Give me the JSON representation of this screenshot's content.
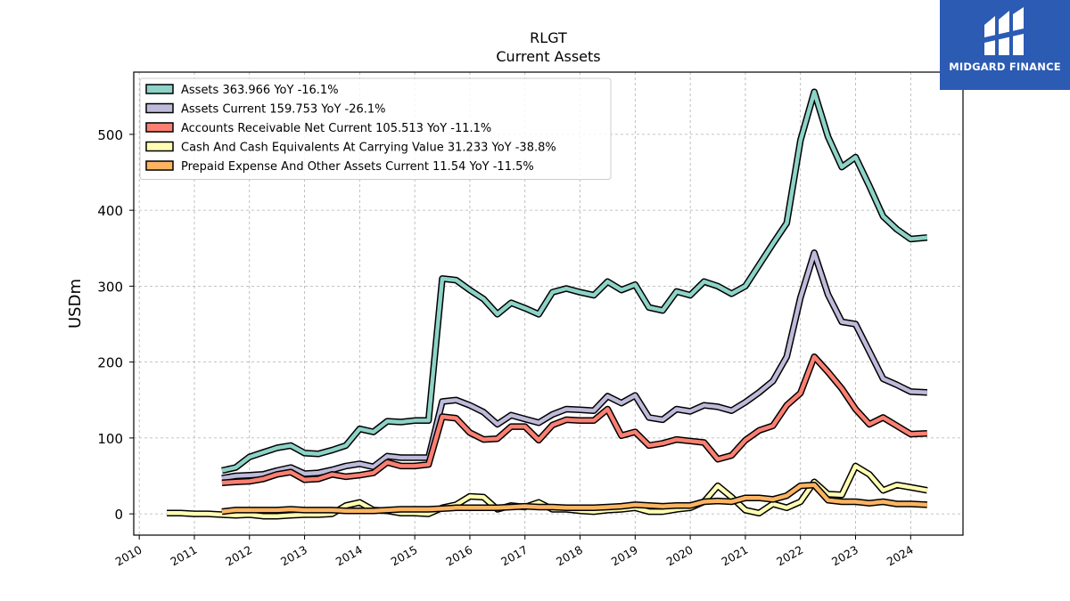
{
  "logo": {
    "text": "MIDGARD FINANCE",
    "bg": "#2b5bb3"
  },
  "chart_data": {
    "type": "line",
    "title": "RLGT",
    "subtitle": "Current  Assets",
    "ylabel": "USDm",
    "xlabel": "",
    "xlim": [
      2009.9,
      2024.95
    ],
    "ylim": [
      -28,
      582
    ],
    "yticks": [
      0,
      100,
      200,
      300,
      400,
      500
    ],
    "xticks": [
      "2010",
      "2011",
      "2012",
      "2013",
      "2014",
      "2015",
      "2016",
      "2017",
      "2018",
      "2019",
      "2020",
      "2021",
      "2022",
      "2023",
      "2024"
    ],
    "grid": true,
    "legend_position": "top-left",
    "series": [
      {
        "name": "Assets",
        "legend": "Assets  363.966 YoY -16.1%",
        "color": "#8dd3c7",
        "points": [
          [
            2011.5,
            57
          ],
          [
            2011.75,
            61
          ],
          [
            2012.0,
            75
          ],
          [
            2012.25,
            81
          ],
          [
            2012.5,
            87
          ],
          [
            2012.75,
            90
          ],
          [
            2013.0,
            80
          ],
          [
            2013.25,
            79
          ],
          [
            2013.5,
            84
          ],
          [
            2013.75,
            90
          ],
          [
            2014.0,
            112
          ],
          [
            2014.25,
            108
          ],
          [
            2014.5,
            122
          ],
          [
            2014.75,
            121
          ],
          [
            2015.0,
            123
          ],
          [
            2015.25,
            123
          ],
          [
            2015.5,
            310
          ],
          [
            2015.75,
            308
          ],
          [
            2016.0,
            295
          ],
          [
            2016.25,
            283
          ],
          [
            2016.5,
            263
          ],
          [
            2016.75,
            278
          ],
          [
            2017.0,
            271
          ],
          [
            2017.25,
            263
          ],
          [
            2017.5,
            292
          ],
          [
            2017.75,
            297
          ],
          [
            2018.0,
            292
          ],
          [
            2018.25,
            288
          ],
          [
            2018.5,
            306
          ],
          [
            2018.75,
            295
          ],
          [
            2019.0,
            302
          ],
          [
            2019.25,
            272
          ],
          [
            2019.5,
            268
          ],
          [
            2019.75,
            293
          ],
          [
            2020.0,
            288
          ],
          [
            2020.25,
            306
          ],
          [
            2020.5,
            300
          ],
          [
            2020.75,
            290
          ],
          [
            2021.0,
            300
          ],
          [
            2021.25,
            328
          ],
          [
            2021.5,
            356
          ],
          [
            2021.75,
            383
          ],
          [
            2022.0,
            492
          ],
          [
            2022.25,
            556
          ],
          [
            2022.5,
            497
          ],
          [
            2022.75,
            457
          ],
          [
            2023.0,
            470
          ],
          [
            2023.25,
            432
          ],
          [
            2023.5,
            392
          ],
          [
            2023.75,
            375
          ],
          [
            2024.0,
            362
          ],
          [
            2024.3,
            364
          ]
        ]
      },
      {
        "name": "Assets Current",
        "legend": "Assets Current  159.753 YoY -26.1%",
        "color": "#bebada",
        "points": [
          [
            2011.5,
            47
          ],
          [
            2011.75,
            50
          ],
          [
            2012.0,
            51
          ],
          [
            2012.25,
            52
          ],
          [
            2012.5,
            57
          ],
          [
            2012.75,
            61
          ],
          [
            2013.0,
            53
          ],
          [
            2013.25,
            54
          ],
          [
            2013.5,
            58
          ],
          [
            2013.75,
            63
          ],
          [
            2014.0,
            66
          ],
          [
            2014.25,
            62
          ],
          [
            2014.5,
            76
          ],
          [
            2014.75,
            74
          ],
          [
            2015.0,
            74
          ],
          [
            2015.25,
            74
          ],
          [
            2015.5,
            148
          ],
          [
            2015.75,
            150
          ],
          [
            2016.0,
            143
          ],
          [
            2016.25,
            134
          ],
          [
            2016.5,
            118
          ],
          [
            2016.75,
            130
          ],
          [
            2017.0,
            125
          ],
          [
            2017.25,
            120
          ],
          [
            2017.5,
            131
          ],
          [
            2017.75,
            138
          ],
          [
            2018.0,
            137
          ],
          [
            2018.25,
            136
          ],
          [
            2018.5,
            155
          ],
          [
            2018.75,
            146
          ],
          [
            2019.0,
            156
          ],
          [
            2019.25,
            127
          ],
          [
            2019.5,
            124
          ],
          [
            2019.75,
            138
          ],
          [
            2020.0,
            135
          ],
          [
            2020.25,
            143
          ],
          [
            2020.5,
            141
          ],
          [
            2020.75,
            136
          ],
          [
            2021.0,
            147
          ],
          [
            2021.25,
            160
          ],
          [
            2021.5,
            175
          ],
          [
            2021.75,
            207
          ],
          [
            2022.0,
            285
          ],
          [
            2022.25,
            344
          ],
          [
            2022.5,
            289
          ],
          [
            2022.75,
            253
          ],
          [
            2023.0,
            250
          ],
          [
            2023.25,
            214
          ],
          [
            2023.5,
            178
          ],
          [
            2023.75,
            170
          ],
          [
            2024.0,
            161
          ],
          [
            2024.3,
            160
          ]
        ]
      },
      {
        "name": "Accounts Receivable Net Current",
        "legend": "Accounts Receivable Net Current  105.513 YoY -11.1%",
        "color": "#fb8072",
        "points": [
          [
            2011.5,
            41
          ],
          [
            2011.75,
            42
          ],
          [
            2012.0,
            43
          ],
          [
            2012.25,
            46
          ],
          [
            2012.5,
            52
          ],
          [
            2012.75,
            55
          ],
          [
            2013.0,
            45
          ],
          [
            2013.25,
            46
          ],
          [
            2013.5,
            52
          ],
          [
            2013.75,
            49
          ],
          [
            2014.0,
            51
          ],
          [
            2014.25,
            54
          ],
          [
            2014.5,
            68
          ],
          [
            2014.75,
            63
          ],
          [
            2015.0,
            63
          ],
          [
            2015.25,
            65
          ],
          [
            2015.5,
            128
          ],
          [
            2015.75,
            126
          ],
          [
            2016.0,
            107
          ],
          [
            2016.25,
            98
          ],
          [
            2016.5,
            99
          ],
          [
            2016.75,
            115
          ],
          [
            2017.0,
            115
          ],
          [
            2017.25,
            97
          ],
          [
            2017.5,
            117
          ],
          [
            2017.75,
            124
          ],
          [
            2018.0,
            123
          ],
          [
            2018.25,
            123
          ],
          [
            2018.5,
            138
          ],
          [
            2018.75,
            103
          ],
          [
            2019.0,
            108
          ],
          [
            2019.25,
            90
          ],
          [
            2019.5,
            93
          ],
          [
            2019.75,
            98
          ],
          [
            2020.0,
            96
          ],
          [
            2020.25,
            94
          ],
          [
            2020.5,
            72
          ],
          [
            2020.75,
            77
          ],
          [
            2021.0,
            97
          ],
          [
            2021.25,
            110
          ],
          [
            2021.5,
            116
          ],
          [
            2021.75,
            143
          ],
          [
            2022.0,
            159
          ],
          [
            2022.25,
            207
          ],
          [
            2022.5,
            187
          ],
          [
            2022.75,
            165
          ],
          [
            2023.0,
            138
          ],
          [
            2023.25,
            118
          ],
          [
            2023.5,
            127
          ],
          [
            2023.75,
            116
          ],
          [
            2024.0,
            105
          ],
          [
            2024.3,
            106
          ]
        ]
      },
      {
        "name": "Cash And Cash Equivalents At Carrying Value",
        "legend": "Cash And Cash Equivalents At Carrying Value  31.233 YoY -38.8%",
        "color": "#ffffb3",
        "points": [
          [
            2010.5,
            1
          ],
          [
            2010.75,
            1
          ],
          [
            2011.0,
            0
          ],
          [
            2011.25,
            0
          ],
          [
            2011.5,
            -1
          ],
          [
            2011.75,
            -2
          ],
          [
            2012.0,
            -1
          ],
          [
            2012.25,
            -3
          ],
          [
            2012.5,
            -3
          ],
          [
            2012.75,
            -2
          ],
          [
            2013.0,
            -1
          ],
          [
            2013.25,
            -1
          ],
          [
            2013.5,
            0
          ],
          [
            2013.75,
            11
          ],
          [
            2014.0,
            15
          ],
          [
            2014.25,
            5
          ],
          [
            2014.5,
            4
          ],
          [
            2014.75,
            1
          ],
          [
            2015.0,
            1
          ],
          [
            2015.25,
            0
          ],
          [
            2015.5,
            8
          ],
          [
            2015.75,
            12
          ],
          [
            2016.0,
            23
          ],
          [
            2016.25,
            22
          ],
          [
            2016.5,
            6
          ],
          [
            2016.75,
            11
          ],
          [
            2017.0,
            9
          ],
          [
            2017.25,
            15
          ],
          [
            2017.5,
            6
          ],
          [
            2017.75,
            6
          ],
          [
            2018.0,
            4
          ],
          [
            2018.25,
            3
          ],
          [
            2018.5,
            5
          ],
          [
            2018.75,
            6
          ],
          [
            2019.0,
            8
          ],
          [
            2019.25,
            3
          ],
          [
            2019.5,
            3
          ],
          [
            2019.75,
            6
          ],
          [
            2020.0,
            8
          ],
          [
            2020.25,
            16
          ],
          [
            2020.5,
            37
          ],
          [
            2020.75,
            22
          ],
          [
            2021.0,
            5
          ],
          [
            2021.25,
            1
          ],
          [
            2021.5,
            13
          ],
          [
            2021.75,
            8
          ],
          [
            2022.0,
            16
          ],
          [
            2022.25,
            42
          ],
          [
            2022.5,
            26
          ],
          [
            2022.75,
            25
          ],
          [
            2023.0,
            63
          ],
          [
            2023.25,
            52
          ],
          [
            2023.5,
            31
          ],
          [
            2023.75,
            38
          ],
          [
            2024.0,
            35
          ],
          [
            2024.3,
            31
          ]
        ]
      },
      {
        "name": "Prepaid Expense And Other Assets Current",
        "legend": "Prepaid Expense And Other Assets Current  11.54 YoY -11.5%",
        "color": "#fdb462",
        "points": [
          [
            2011.5,
            3
          ],
          [
            2011.75,
            5
          ],
          [
            2012.0,
            5
          ],
          [
            2012.25,
            5
          ],
          [
            2012.5,
            5
          ],
          [
            2012.75,
            6
          ],
          [
            2013.0,
            5
          ],
          [
            2013.25,
            5
          ],
          [
            2013.5,
            5
          ],
          [
            2013.75,
            4
          ],
          [
            2014.0,
            4
          ],
          [
            2014.25,
            4
          ],
          [
            2014.5,
            5
          ],
          [
            2014.75,
            6
          ],
          [
            2015.0,
            6
          ],
          [
            2015.25,
            6
          ],
          [
            2015.5,
            7
          ],
          [
            2015.75,
            8
          ],
          [
            2016.0,
            8
          ],
          [
            2016.25,
            8
          ],
          [
            2016.5,
            8
          ],
          [
            2016.75,
            9
          ],
          [
            2017.0,
            10
          ],
          [
            2017.25,
            9
          ],
          [
            2017.5,
            9
          ],
          [
            2017.75,
            8
          ],
          [
            2018.0,
            8
          ],
          [
            2018.25,
            8
          ],
          [
            2018.5,
            9
          ],
          [
            2018.75,
            10
          ],
          [
            2019.0,
            12
          ],
          [
            2019.25,
            11
          ],
          [
            2019.5,
            10
          ],
          [
            2019.75,
            11
          ],
          [
            2020.0,
            11
          ],
          [
            2020.25,
            16
          ],
          [
            2020.5,
            17
          ],
          [
            2020.75,
            16
          ],
          [
            2021.0,
            21
          ],
          [
            2021.25,
            21
          ],
          [
            2021.5,
            19
          ],
          [
            2021.75,
            24
          ],
          [
            2022.0,
            37
          ],
          [
            2022.25,
            38
          ],
          [
            2022.5,
            18
          ],
          [
            2022.75,
            16
          ],
          [
            2023.0,
            16
          ],
          [
            2023.25,
            14
          ],
          [
            2023.5,
            16
          ],
          [
            2023.75,
            13
          ],
          [
            2024.0,
            13
          ],
          [
            2024.3,
            12
          ]
        ]
      }
    ]
  }
}
